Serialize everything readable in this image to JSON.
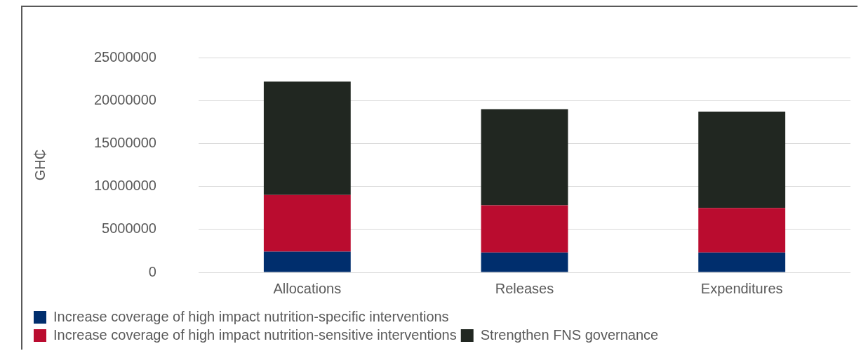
{
  "chart_data": {
    "type": "bar",
    "stacked": true,
    "ylabel": "GH₵",
    "categories": [
      "Allocations",
      "Releases",
      "Expenditures"
    ],
    "series": [
      {
        "name": "Increase coverage of high impact nutrition-specific interventions",
        "color": "#002e6d",
        "values": [
          2400000,
          2300000,
          2300000
        ]
      },
      {
        "name": "Increase coverage of high impact nutrition-sensitive interventions",
        "color": "#ba0c2f",
        "values": [
          6600000,
          5500000,
          5200000
        ]
      },
      {
        "name": "Strengthen FNS governance",
        "color": "#212721",
        "values": [
          13200000,
          11200000,
          11200000
        ]
      }
    ],
    "ylim": [
      0,
      25000000
    ],
    "yticks": [
      0,
      5000000,
      10000000,
      15000000,
      20000000,
      25000000
    ],
    "grid": "y",
    "legend": "bottom"
  }
}
